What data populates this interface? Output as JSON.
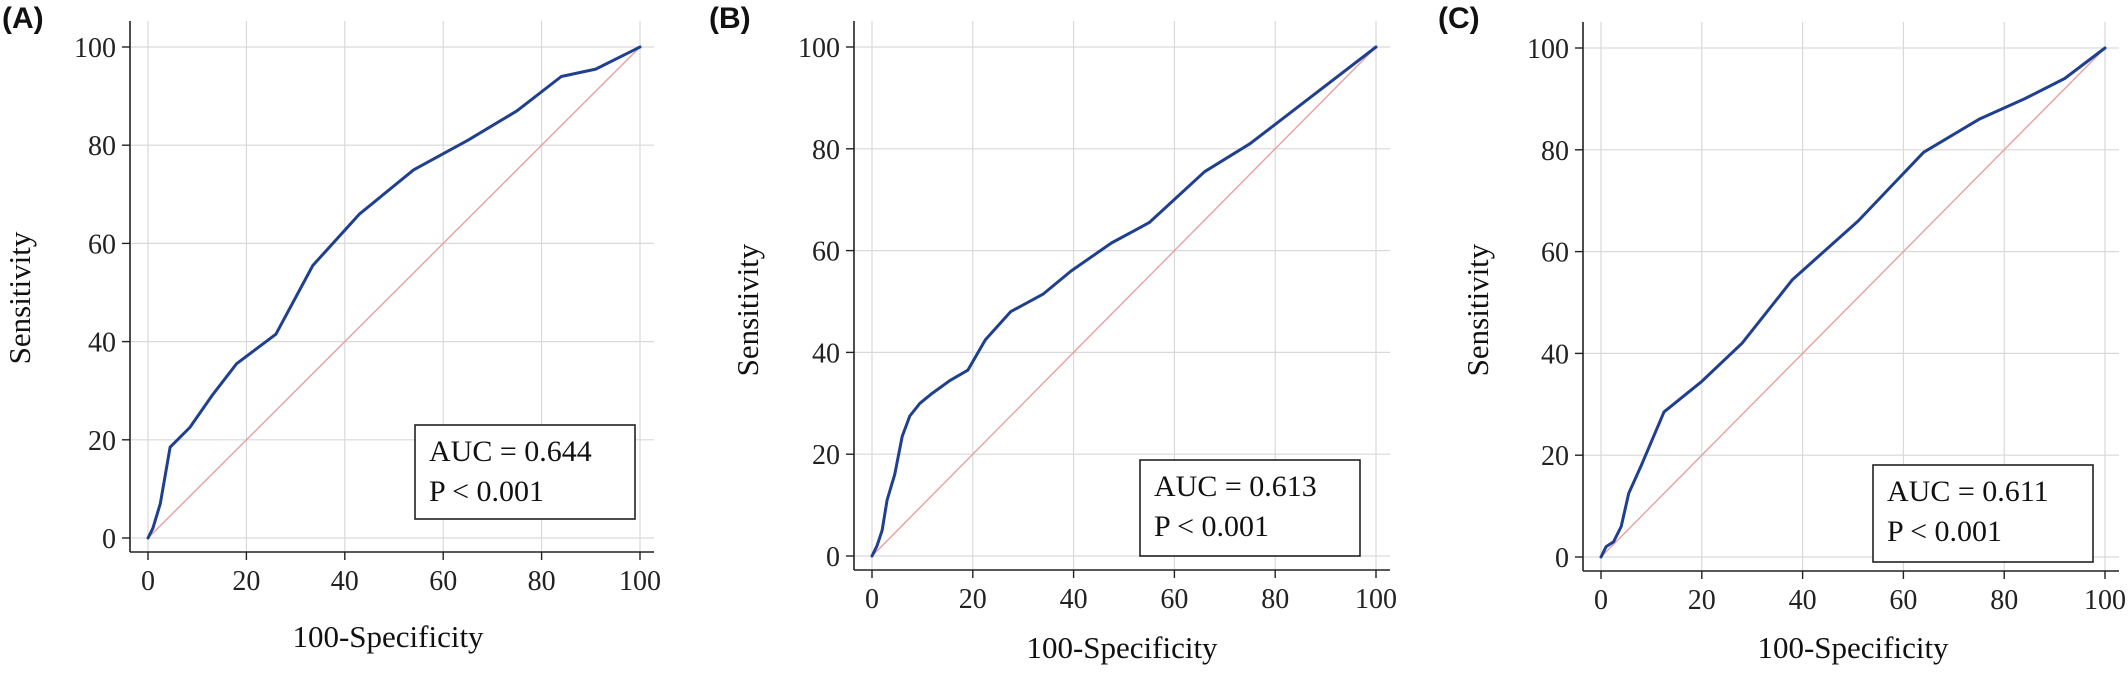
{
  "chart_data": [
    {
      "type": "line",
      "panel_label": "(A)",
      "xlabel": "100-Specificity",
      "ylabel": "Sensitivity",
      "xlim": [
        0,
        100
      ],
      "ylim": [
        0,
        100
      ],
      "xticks": [
        0,
        20,
        40,
        60,
        80,
        100
      ],
      "yticks": [
        0,
        20,
        40,
        60,
        80,
        100
      ],
      "grid": true,
      "reference_line": {
        "x": [
          0,
          100
        ],
        "y": [
          0,
          100
        ],
        "color": "#e8a0a0"
      },
      "series": [
        {
          "color": "#1f3f8f",
          "x": [
            0,
            1,
            2.5,
            4.5,
            8.5,
            13,
            18,
            26,
            33.5,
            43,
            54,
            65,
            75,
            84,
            91,
            100
          ],
          "y": [
            0,
            2,
            7,
            18.5,
            22.5,
            29,
            35.5,
            41.5,
            55.5,
            66,
            75,
            81,
            87,
            94,
            95.5,
            100
          ]
        }
      ],
      "annotation": {
        "auc": "AUC = 0.644",
        "p": "P < 0.001"
      }
    },
    {
      "type": "line",
      "panel_label": "(B)",
      "xlabel": "100-Specificity",
      "ylabel": "Sensitivity",
      "xlim": [
        0,
        100
      ],
      "ylim": [
        0,
        100
      ],
      "xticks": [
        0,
        20,
        40,
        60,
        80,
        100
      ],
      "yticks": [
        0,
        20,
        40,
        60,
        80,
        100
      ],
      "grid": true,
      "reference_line": {
        "x": [
          0,
          100
        ],
        "y": [
          0,
          100
        ],
        "color": "#e8a0a0"
      },
      "series": [
        {
          "color": "#1f3f8f",
          "x": [
            0,
            1,
            2,
            3,
            4.5,
            6,
            7.5,
            9.5,
            12,
            15.5,
            19,
            22.5,
            27.5,
            34,
            39.5,
            47.5,
            55,
            66,
            75,
            100
          ],
          "y": [
            0,
            2,
            5,
            11,
            16,
            23.5,
            27.5,
            30,
            32,
            34.5,
            36.5,
            42.5,
            48,
            51.5,
            56,
            61.5,
            65.5,
            75.5,
            81,
            100
          ]
        }
      ],
      "annotation": {
        "auc": "AUC = 0.613",
        "p": "P < 0.001"
      }
    },
    {
      "type": "line",
      "panel_label": "(C)",
      "xlabel": "100-Specificity",
      "ylabel": "Sensitivity",
      "xlim": [
        0,
        100
      ],
      "ylim": [
        0,
        100
      ],
      "xticks": [
        0,
        20,
        40,
        60,
        80,
        100
      ],
      "yticks": [
        0,
        20,
        40,
        60,
        80,
        100
      ],
      "grid": true,
      "reference_line": {
        "x": [
          0,
          100
        ],
        "y": [
          0,
          100
        ],
        "color": "#e8a0a0"
      },
      "series": [
        {
          "color": "#1f3f8f",
          "x": [
            0,
            1,
            2.5,
            4,
            5.5,
            8,
            12.5,
            20,
            28,
            38,
            51,
            64,
            75,
            84,
            92,
            100
          ],
          "y": [
            0,
            2,
            3,
            6,
            12.5,
            18,
            28.5,
            34.5,
            42,
            54.5,
            66,
            79.5,
            86,
            90,
            94,
            100
          ]
        }
      ],
      "annotation": {
        "auc": "AUC = 0.611",
        "p": "P < 0.001"
      }
    }
  ]
}
